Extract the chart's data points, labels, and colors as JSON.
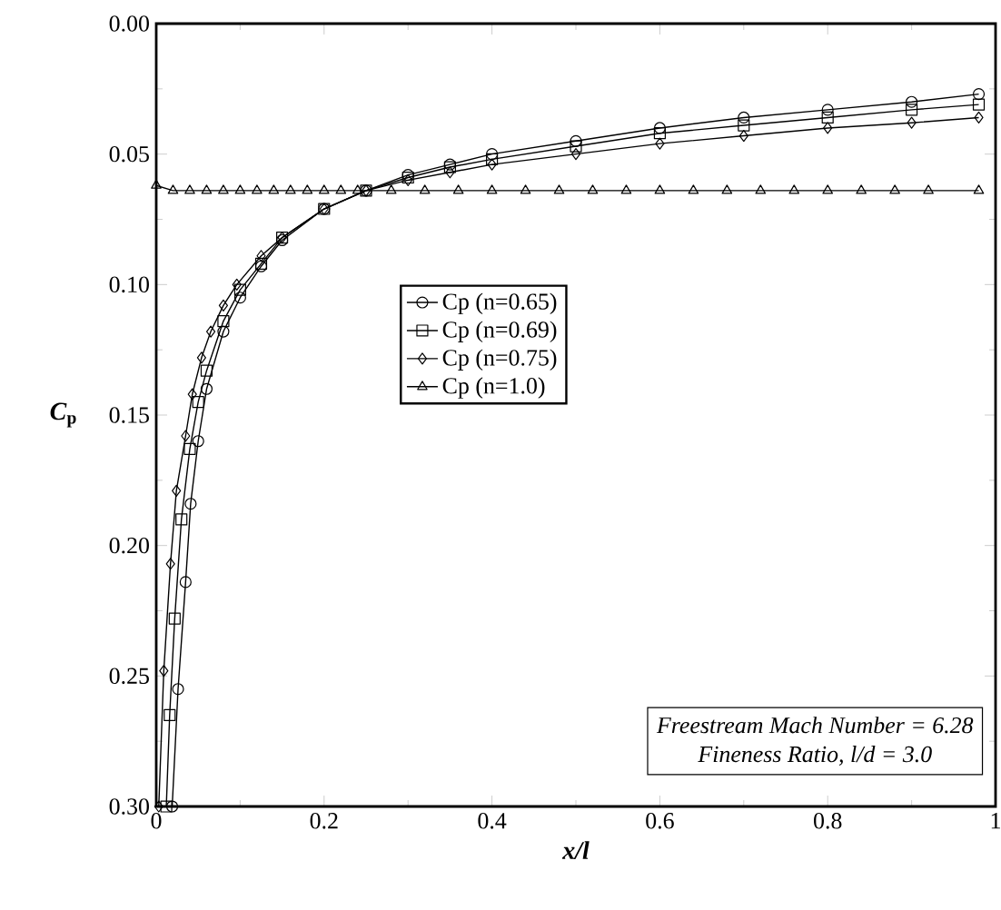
{
  "chart_data": {
    "type": "line",
    "xlabel": "*x/l*",
    "ylabel": "*C*$_{p}$",
    "xlim": [
      0,
      1
    ],
    "ylim": [
      0.3,
      0.0
    ],
    "xticks": [
      0,
      0.2,
      0.4,
      0.6,
      0.8,
      1
    ],
    "yticks": [
      {
        "value": 0.0,
        "label": "0.00"
      },
      {
        "value": 0.05,
        "label": "0.05"
      },
      {
        "value": 0.1,
        "label": "0.10"
      },
      {
        "value": 0.15,
        "label": "0.15"
      },
      {
        "value": 0.2,
        "label": "0.20"
      },
      {
        "value": 0.25,
        "label": "0.25"
      },
      {
        "value": 0.3,
        "label": "0.30"
      }
    ],
    "legend": "center",
    "grid": false,
    "series": [
      {
        "name": "Cp (n=0.65)",
        "color": "#000000",
        "marker": "circle",
        "x": [
          0.019,
          0.026,
          0.035,
          0.041,
          0.05,
          0.06,
          0.08,
          0.1,
          0.125,
          0.15,
          0.2,
          0.25,
          0.3,
          0.35,
          0.4,
          0.5,
          0.6,
          0.7,
          0.8,
          0.9,
          0.98
        ],
        "values": [
          0.3,
          0.255,
          0.214,
          0.184,
          0.16,
          0.14,
          0.118,
          0.105,
          0.093,
          0.083,
          0.071,
          0.064,
          0.058,
          0.054,
          0.05,
          0.045,
          0.04,
          0.036,
          0.033,
          0.03,
          0.027
        ]
      },
      {
        "name": "Cp (n=0.69)",
        "color": "#000000",
        "marker": "square",
        "x": [
          0.012,
          0.016,
          0.022,
          0.03,
          0.04,
          0.05,
          0.06,
          0.08,
          0.1,
          0.125,
          0.15,
          0.2,
          0.25,
          0.3,
          0.35,
          0.4,
          0.5,
          0.6,
          0.7,
          0.8,
          0.9,
          0.98
        ],
        "values": [
          0.3,
          0.265,
          0.228,
          0.19,
          0.163,
          0.145,
          0.133,
          0.114,
          0.102,
          0.092,
          0.082,
          0.071,
          0.064,
          0.059,
          0.055,
          0.052,
          0.047,
          0.042,
          0.039,
          0.036,
          0.033,
          0.031
        ]
      },
      {
        "name": "Cp (n=0.75)",
        "color": "#000000",
        "marker": "diamond",
        "x": [
          0.003,
          0.009,
          0.017,
          0.024,
          0.035,
          0.043,
          0.054,
          0.065,
          0.08,
          0.096,
          0.125,
          0.15,
          0.2,
          0.25,
          0.3,
          0.35,
          0.4,
          0.5,
          0.6,
          0.7,
          0.8,
          0.9,
          0.98
        ],
        "values": [
          0.3,
          0.248,
          0.207,
          0.179,
          0.158,
          0.142,
          0.128,
          0.118,
          0.108,
          0.1,
          0.089,
          0.082,
          0.071,
          0.064,
          0.06,
          0.057,
          0.054,
          0.05,
          0.046,
          0.043,
          0.04,
          0.038,
          0.036
        ]
      },
      {
        "name": "Cp (n=1.0)",
        "color": "#000000",
        "marker": "triangle",
        "x": [
          0,
          0.02,
          0.04,
          0.06,
          0.08,
          0.1,
          0.12,
          0.14,
          0.16,
          0.18,
          0.2,
          0.22,
          0.24,
          0.28,
          0.32,
          0.36,
          0.4,
          0.44,
          0.48,
          0.52,
          0.56,
          0.6,
          0.64,
          0.68,
          0.72,
          0.76,
          0.8,
          0.84,
          0.88,
          0.92,
          0.98
        ],
        "values": [
          0.062,
          0.064,
          0.064,
          0.064,
          0.064,
          0.064,
          0.064,
          0.064,
          0.064,
          0.064,
          0.064,
          0.064,
          0.064,
          0.064,
          0.064,
          0.064,
          0.064,
          0.064,
          0.064,
          0.064,
          0.064,
          0.064,
          0.064,
          0.064,
          0.064,
          0.064,
          0.064,
          0.064,
          0.064,
          0.064,
          0.064
        ]
      }
    ],
    "annotations": [
      "Freestream Mach Number = 6.28",
      "Fineness Ratio, l/d = 3.0"
    ]
  }
}
